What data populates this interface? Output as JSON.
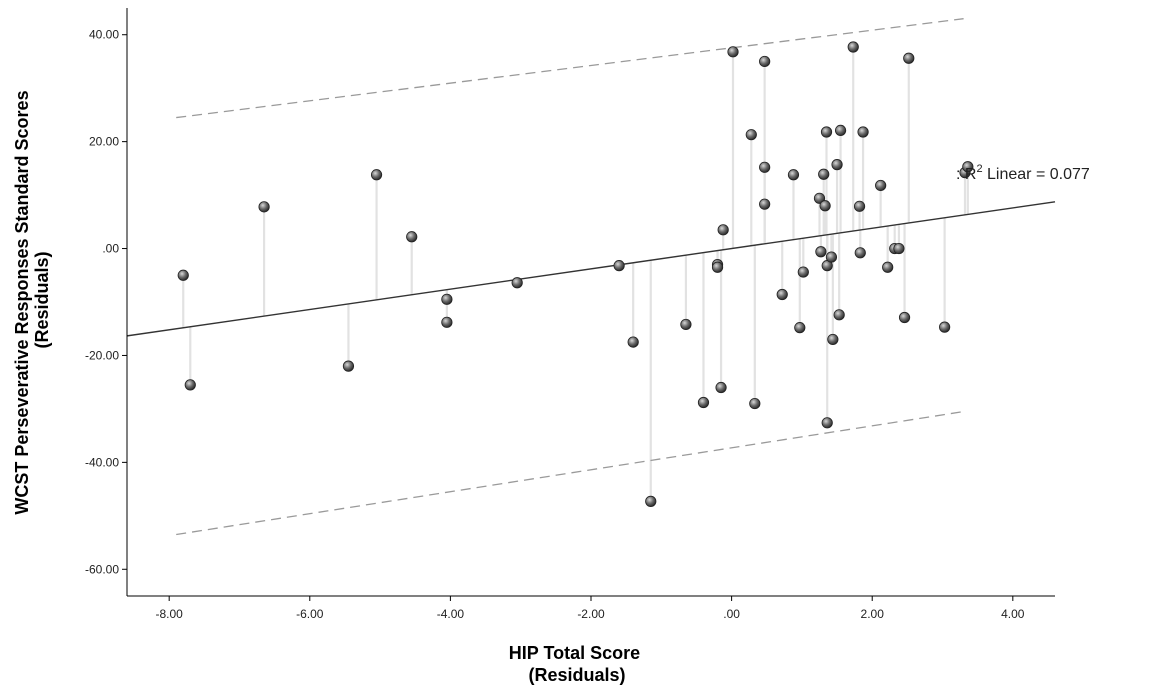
{
  "chart_data": {
    "type": "scatter",
    "xlabel": [
      "HIP Total Score",
      "(Residuals)"
    ],
    "ylabel": [
      "WCST Perseverative Responses Standard Scores",
      "(Residuals)"
    ],
    "xlim": [
      -8.6,
      4.6
    ],
    "ylim": [
      -65,
      45
    ],
    "xticks": [
      -8,
      -6,
      -4,
      -2,
      0,
      2,
      4
    ],
    "yticks": [
      40,
      20,
      0,
      -20,
      -40,
      -60
    ],
    "xtick_labels": [
      "-8.00",
      "-6.00",
      "-4.00",
      "-2.00",
      ".00",
      "2.00",
      "4.00"
    ],
    "ytick_labels": [
      "40.00",
      "20.00",
      ".00",
      "-20.00",
      "-40.00",
      "-60.00"
    ],
    "fit_line": {
      "intercept": 0.0,
      "slope": 1.9
    },
    "ci_upper": {
      "x": [
        -7.9,
        3.3
      ],
      "y": [
        24.5,
        43.0
      ]
    },
    "ci_lower": {
      "x": [
        -7.9,
        3.3
      ],
      "y": [
        -53.5,
        -30.5
      ]
    },
    "annotation": {
      "prefix": ": R",
      "sup": "2",
      "suffix": " Linear = 0.077"
    },
    "grid": false,
    "points": [
      {
        "x": -7.8,
        "y": -5.0
      },
      {
        "x": -7.7,
        "y": -25.5
      },
      {
        "x": -6.65,
        "y": 7.8
      },
      {
        "x": -5.45,
        "y": -22.0
      },
      {
        "x": -5.05,
        "y": 13.8
      },
      {
        "x": -4.55,
        "y": 2.2
      },
      {
        "x": -4.05,
        "y": -9.5
      },
      {
        "x": -4.05,
        "y": -13.8
      },
      {
        "x": -3.05,
        "y": -6.4
      },
      {
        "x": -1.6,
        "y": -3.2
      },
      {
        "x": -1.4,
        "y": -17.5
      },
      {
        "x": -1.15,
        "y": -47.3
      },
      {
        "x": -0.65,
        "y": -14.2
      },
      {
        "x": -0.4,
        "y": -28.8
      },
      {
        "x": -0.2,
        "y": -3.0
      },
      {
        "x": -0.2,
        "y": -3.5
      },
      {
        "x": -0.15,
        "y": -26.0
      },
      {
        "x": -0.12,
        "y": 3.5
      },
      {
        "x": 0.02,
        "y": 36.8
      },
      {
        "x": 0.28,
        "y": 21.3
      },
      {
        "x": 0.33,
        "y": -29.0
      },
      {
        "x": 0.47,
        "y": 35.0
      },
      {
        "x": 0.47,
        "y": 15.2
      },
      {
        "x": 0.47,
        "y": 8.3
      },
      {
        "x": 0.72,
        "y": -8.6
      },
      {
        "x": 0.88,
        "y": 13.8
      },
      {
        "x": 0.97,
        "y": -14.8
      },
      {
        "x": 1.02,
        "y": -4.4
      },
      {
        "x": 1.25,
        "y": 9.4
      },
      {
        "x": 1.27,
        "y": -0.6
      },
      {
        "x": 1.31,
        "y": 13.9
      },
      {
        "x": 1.33,
        "y": 8.0
      },
      {
        "x": 1.35,
        "y": 21.8
      },
      {
        "x": 1.36,
        "y": -3.2
      },
      {
        "x": 1.36,
        "y": -32.6
      },
      {
        "x": 1.42,
        "y": -1.6
      },
      {
        "x": 1.44,
        "y": -17.0
      },
      {
        "x": 1.5,
        "y": 15.7
      },
      {
        "x": 1.53,
        "y": -12.4
      },
      {
        "x": 1.55,
        "y": 22.1
      },
      {
        "x": 1.73,
        "y": 37.7
      },
      {
        "x": 1.82,
        "y": 7.9
      },
      {
        "x": 1.83,
        "y": -0.8
      },
      {
        "x": 1.87,
        "y": 21.8
      },
      {
        "x": 2.12,
        "y": 11.8
      },
      {
        "x": 2.22,
        "y": -3.5
      },
      {
        "x": 2.32,
        "y": 0.0
      },
      {
        "x": 2.38,
        "y": 0.0
      },
      {
        "x": 2.46,
        "y": -12.9
      },
      {
        "x": 2.52,
        "y": 35.6
      },
      {
        "x": 3.03,
        "y": -14.7
      },
      {
        "x": 3.32,
        "y": 14.2
      },
      {
        "x": 3.36,
        "y": 15.3
      }
    ]
  }
}
